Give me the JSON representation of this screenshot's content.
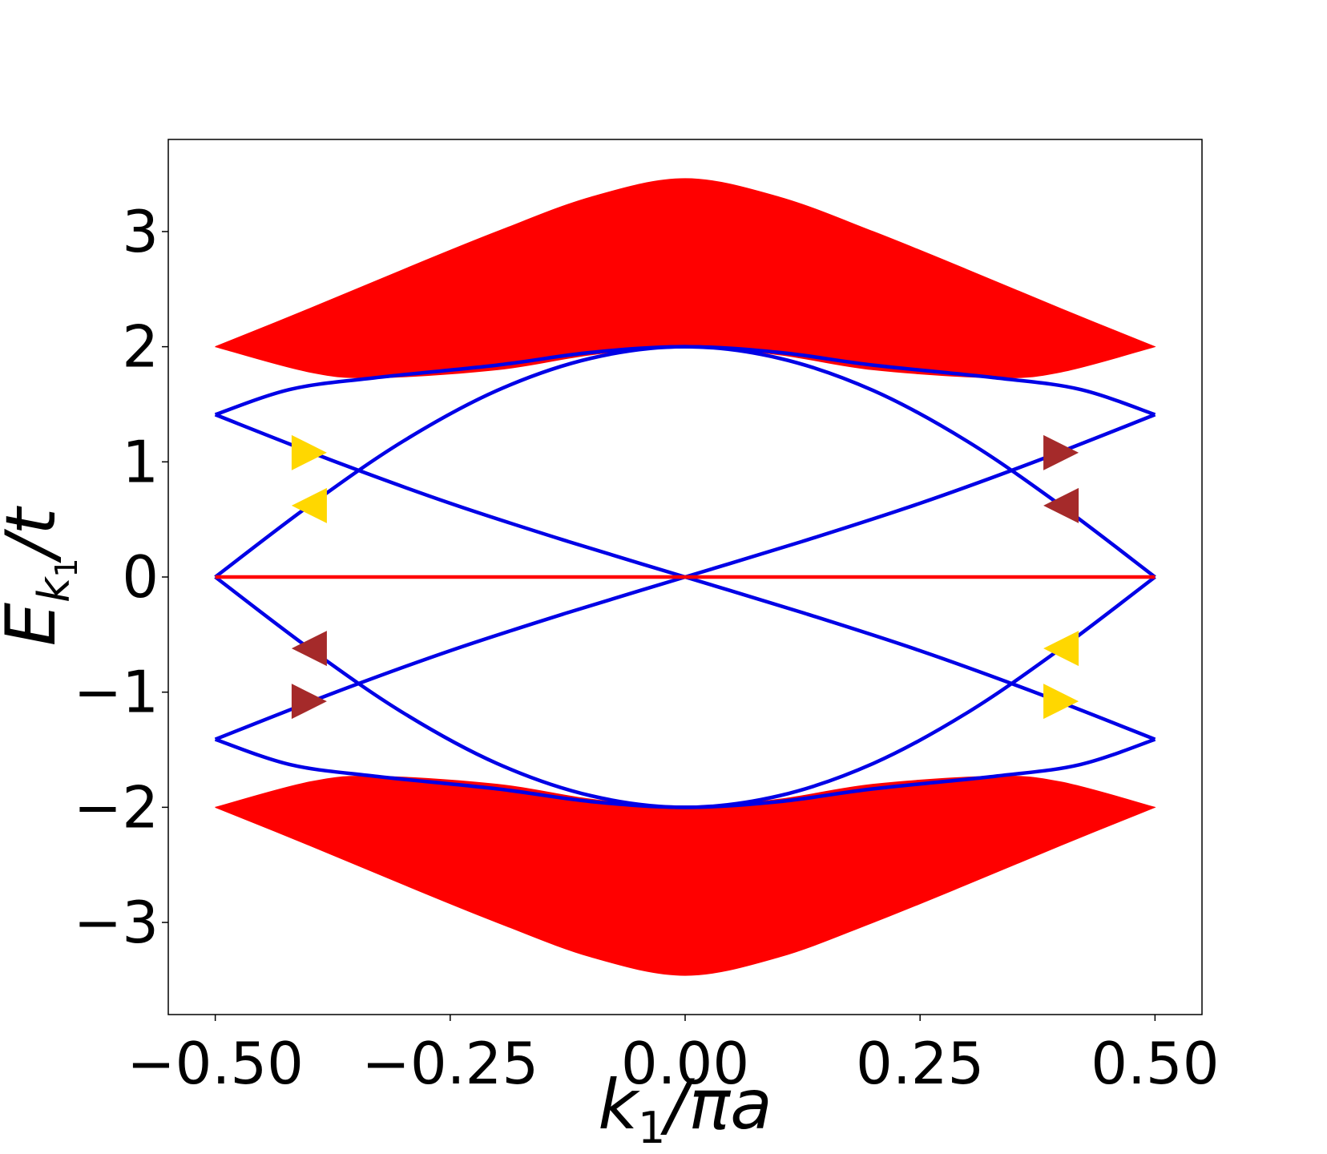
{
  "chart_data": {
    "type": "line",
    "title": "",
    "xlabel": {
      "main": "k",
      "sub": "1",
      "rest": "/πa"
    },
    "ylabel": {
      "main": "E",
      "sub": "k",
      "subsub": "1",
      "rest": "/t"
    },
    "xlim": [
      -0.55,
      0.55
    ],
    "ylim": [
      -3.8,
      3.8
    ],
    "xticks": [
      {
        "value": -0.5,
        "label": "−0.50"
      },
      {
        "value": -0.25,
        "label": "−0.25"
      },
      {
        "value": 0.0,
        "label": "0.00"
      },
      {
        "value": 0.25,
        "label": "0.25"
      },
      {
        "value": 0.5,
        "label": "0.50"
      }
    ],
    "yticks": [
      {
        "value": 3,
        "label": "3"
      },
      {
        "value": 2,
        "label": "2"
      },
      {
        "value": 1,
        "label": "1"
      },
      {
        "value": 0,
        "label": "0"
      },
      {
        "value": -1,
        "label": "−1"
      },
      {
        "value": -2,
        "label": "−2"
      },
      {
        "value": -3,
        "label": "−3"
      }
    ],
    "grid": false,
    "legend": "none",
    "colors": {
      "bulk_band": "#ff0000",
      "edge_state": "#0000e6",
      "flat_band": "#ff0000",
      "marker_gold": "#ffd700",
      "marker_brown": "#a52a2a"
    },
    "bulk_bands": [
      {
        "name": "upper",
        "outer": {
          "x": [
            -0.5,
            -0.4,
            -0.3,
            -0.2,
            -0.1,
            0.0,
            0.1,
            0.2,
            0.3,
            0.4,
            0.5
          ],
          "y": [
            2.0,
            2.33,
            2.67,
            3.0,
            3.3,
            3.46,
            3.3,
            3.0,
            2.67,
            2.33,
            2.0
          ]
        },
        "inner": {
          "x": [
            -0.5,
            -0.4,
            -0.33,
            -0.2,
            -0.1,
            0.0,
            0.1,
            0.2,
            0.33,
            0.4,
            0.5
          ],
          "y": [
            2.0,
            1.78,
            1.73,
            1.8,
            1.93,
            2.0,
            1.93,
            1.8,
            1.73,
            1.78,
            2.0
          ]
        }
      },
      {
        "name": "lower",
        "outer": {
          "x": [
            -0.5,
            -0.4,
            -0.3,
            -0.2,
            -0.1,
            0.0,
            0.1,
            0.2,
            0.3,
            0.4,
            0.5
          ],
          "y": [
            -2.0,
            -2.33,
            -2.67,
            -3.0,
            -3.3,
            -3.46,
            -3.3,
            -3.0,
            -2.67,
            -2.33,
            -2.0
          ]
        },
        "inner": {
          "x": [
            -0.5,
            -0.4,
            -0.33,
            -0.2,
            -0.1,
            0.0,
            0.1,
            0.2,
            0.33,
            0.4,
            0.5
          ],
          "y": [
            -2.0,
            -1.78,
            -1.73,
            -1.8,
            -1.93,
            -2.0,
            -1.93,
            -1.8,
            -1.73,
            -1.78,
            -2.0
          ]
        }
      }
    ],
    "edge_states": [
      {
        "x": [
          -0.5,
          -0.42,
          -0.33,
          -0.2,
          -0.1,
          0.0,
          0.1,
          0.2,
          0.33,
          0.42,
          0.5
        ],
        "y": [
          1.41,
          1.63,
          1.73,
          1.84,
          1.95,
          2.0,
          1.95,
          1.84,
          1.73,
          1.63,
          1.41
        ]
      },
      {
        "x": [
          -0.5,
          -0.42,
          -0.33,
          -0.2,
          -0.1,
          0.0,
          0.1,
          0.2,
          0.33,
          0.42,
          0.5
        ],
        "y": [
          -1.41,
          -1.63,
          -1.73,
          -1.84,
          -1.95,
          -2.0,
          -1.95,
          -1.84,
          -1.73,
          -1.63,
          -1.41
        ]
      },
      {
        "x": [
          -0.5,
          -0.375,
          -0.25,
          -0.125,
          0.0,
          0.125,
          0.25,
          0.375,
          0.5
        ],
        "y": [
          1.41,
          1.01,
          0.64,
          0.31,
          0.0,
          -0.31,
          -0.64,
          -1.01,
          -1.41
        ]
      },
      {
        "x": [
          -0.5,
          -0.375,
          -0.25,
          -0.125,
          0.0,
          0.125,
          0.25,
          0.375,
          0.5
        ],
        "y": [
          -1.41,
          -1.01,
          -0.64,
          -0.31,
          0.0,
          0.31,
          0.64,
          1.01,
          1.41
        ]
      },
      {
        "x": [
          -0.5,
          -0.4,
          -0.3,
          -0.2,
          -0.1,
          0.0,
          0.1,
          0.2,
          0.3,
          0.4,
          0.5
        ],
        "y": [
          0.0,
          0.62,
          1.18,
          1.62,
          1.9,
          2.0,
          1.9,
          1.62,
          1.18,
          0.62,
          0.0
        ]
      },
      {
        "x": [
          -0.5,
          -0.4,
          -0.3,
          -0.2,
          -0.1,
          0.0,
          0.1,
          0.2,
          0.3,
          0.4,
          0.5
        ],
        "y": [
          0.0,
          -0.62,
          -1.18,
          -1.62,
          -1.9,
          -2.0,
          -1.9,
          -1.62,
          -1.18,
          -0.62,
          0.0
        ]
      }
    ],
    "flat_band": {
      "x": [
        -0.5,
        0.5
      ],
      "y": [
        0.0,
        0.0
      ]
    },
    "markers": [
      {
        "x": -0.4,
        "y": 1.08,
        "direction": "right",
        "color": "gold"
      },
      {
        "x": -0.4,
        "y": 0.62,
        "direction": "left",
        "color": "gold"
      },
      {
        "x": -0.4,
        "y": -0.62,
        "direction": "left",
        "color": "brown"
      },
      {
        "x": -0.4,
        "y": -1.08,
        "direction": "right",
        "color": "brown"
      },
      {
        "x": 0.4,
        "y": 1.08,
        "direction": "right",
        "color": "brown"
      },
      {
        "x": 0.4,
        "y": 0.62,
        "direction": "left",
        "color": "brown"
      },
      {
        "x": 0.4,
        "y": -0.62,
        "direction": "left",
        "color": "gold"
      },
      {
        "x": 0.4,
        "y": -1.08,
        "direction": "right",
        "color": "gold"
      }
    ]
  }
}
